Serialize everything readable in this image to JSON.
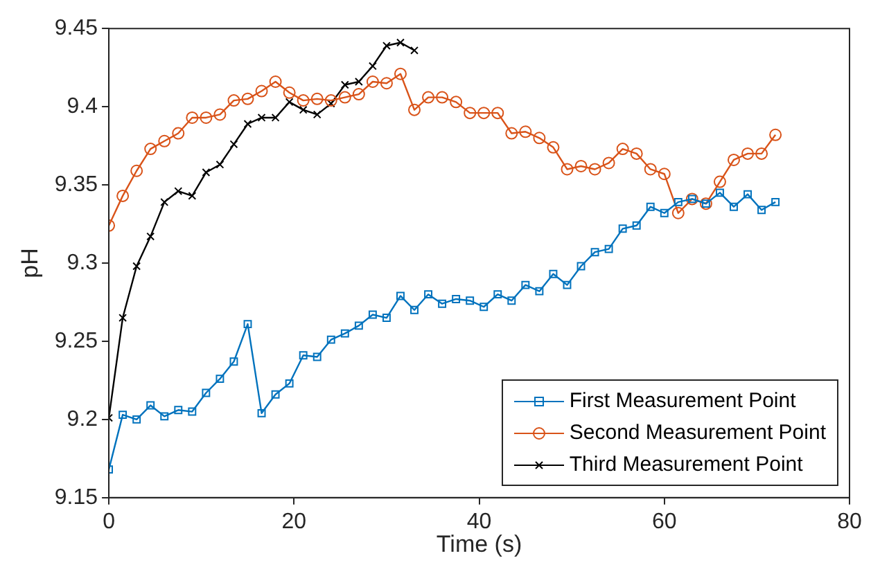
{
  "chart_data": {
    "type": "line",
    "xlabel": "Time (s)",
    "ylabel": "pH",
    "xlim": [
      0,
      80
    ],
    "xticks": [
      0,
      20,
      40,
      60,
      80
    ],
    "ylim": [
      9.15,
      9.45
    ],
    "yticks": [
      9.15,
      9.2,
      9.25,
      9.3,
      9.35,
      9.4,
      9.45
    ],
    "grid": false,
    "legend": "bottom right",
    "line_style": "solid",
    "series": [
      {
        "name": "First Measurement Point",
        "color": "#0072bd",
        "marker": "square",
        "x": [
          0,
          1.5,
          3,
          4.5,
          6,
          7.5,
          9,
          10.5,
          12,
          13.5,
          15,
          16.5,
          18,
          19.5,
          21,
          22.5,
          24,
          25.5,
          27,
          28.5,
          30,
          31.5,
          33,
          34.5,
          36,
          37.5,
          39,
          40.5,
          42,
          43.5,
          45,
          46.5,
          48,
          49.5,
          51,
          52.5,
          54,
          55.5,
          57,
          58.5,
          60,
          61.5,
          63,
          64.5,
          66,
          67.5,
          69,
          70.5,
          72
        ],
        "values": [
          9.168,
          9.203,
          9.2,
          9.209,
          9.202,
          9.206,
          9.205,
          9.217,
          9.226,
          9.237,
          9.261,
          9.204,
          9.216,
          9.223,
          9.241,
          9.24,
          9.251,
          9.255,
          9.26,
          9.267,
          9.265,
          9.279,
          9.27,
          9.28,
          9.274,
          9.277,
          9.276,
          9.272,
          9.28,
          9.276,
          9.286,
          9.282,
          9.293,
          9.286,
          9.298,
          9.307,
          9.309,
          9.322,
          9.324,
          9.336,
          9.332,
          9.339,
          9.341,
          9.338,
          9.345,
          9.336,
          9.344,
          9.334,
          9.339
        ]
      },
      {
        "name": "Second Measurement Point",
        "color": "#d95319",
        "marker": "circle",
        "x": [
          0,
          1.5,
          3,
          4.5,
          6,
          7.5,
          9,
          10.5,
          12,
          13.5,
          15,
          16.5,
          18,
          19.5,
          21,
          22.5,
          24,
          25.5,
          27,
          28.5,
          30,
          31.5,
          33,
          34.5,
          36,
          37.5,
          39,
          40.5,
          42,
          43.5,
          45,
          46.5,
          48,
          49.5,
          51,
          52.5,
          54,
          55.5,
          57,
          58.5,
          60,
          61.5,
          63,
          64.5,
          66,
          67.5,
          69,
          70.5,
          72
        ],
        "values": [
          9.324,
          9.343,
          9.359,
          9.373,
          9.378,
          9.383,
          9.393,
          9.393,
          9.395,
          9.404,
          9.405,
          9.41,
          9.416,
          9.409,
          9.404,
          9.405,
          9.404,
          9.406,
          9.408,
          9.416,
          9.415,
          9.421,
          9.398,
          9.406,
          9.406,
          9.403,
          9.396,
          9.396,
          9.396,
          9.383,
          9.384,
          9.38,
          9.374,
          9.36,
          9.362,
          9.36,
          9.364,
          9.373,
          9.37,
          9.36,
          9.357,
          9.332,
          9.341,
          9.338,
          9.352,
          9.366,
          9.37,
          9.37,
          9.382
        ]
      },
      {
        "name": "Third Measurement Point",
        "color": "#000000",
        "marker": "cross",
        "x": [
          0,
          1.5,
          3,
          4.5,
          6,
          7.5,
          9,
          10.5,
          12,
          13.5,
          15,
          16.5,
          18,
          19.5,
          21,
          22.5,
          24,
          25.5,
          27,
          28.5,
          30,
          31.5,
          33
        ],
        "values": [
          9.201,
          9.265,
          9.298,
          9.317,
          9.339,
          9.346,
          9.343,
          9.358,
          9.363,
          9.376,
          9.389,
          9.393,
          9.393,
          9.403,
          9.398,
          9.395,
          9.402,
          9.414,
          9.416,
          9.426,
          9.439,
          9.441,
          9.436
        ]
      }
    ]
  }
}
